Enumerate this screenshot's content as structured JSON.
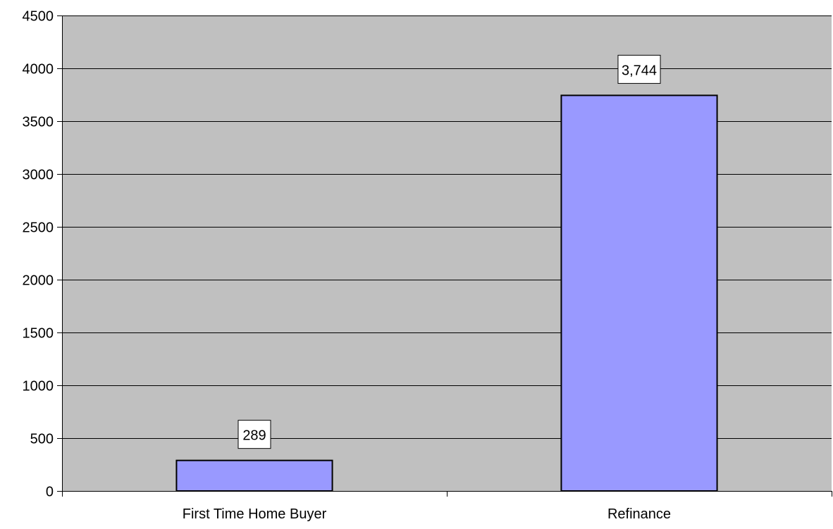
{
  "chart_data": {
    "type": "bar",
    "title": "",
    "xlabel": "",
    "ylabel": "",
    "categories": [
      "First Time Home Buyer",
      "Refinance"
    ],
    "values": [
      289,
      3744
    ],
    "data_labels": [
      "289",
      "3,744"
    ],
    "ylim": [
      0,
      4500
    ],
    "yticks": [
      0,
      500,
      1000,
      1500,
      2000,
      2500,
      3000,
      3500,
      4000,
      4500
    ],
    "grid": true,
    "legend": "none",
    "colors": {
      "plot_background": "#c0c0c0",
      "bar_fill": "#9999ff",
      "bar_stroke": "#000000",
      "gridline": "#000000",
      "label_box": "#ffffff"
    }
  }
}
